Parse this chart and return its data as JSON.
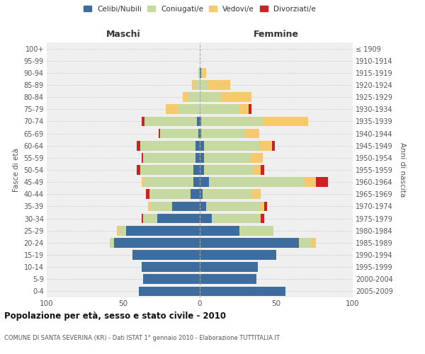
{
  "age_groups": [
    "0-4",
    "5-9",
    "10-14",
    "15-19",
    "20-24",
    "25-29",
    "30-34",
    "35-39",
    "40-44",
    "45-49",
    "50-54",
    "55-59",
    "60-64",
    "65-69",
    "70-74",
    "75-79",
    "80-84",
    "85-89",
    "90-94",
    "95-99",
    "100+"
  ],
  "birth_years": [
    "2005-2009",
    "2000-2004",
    "1995-1999",
    "1990-1994",
    "1985-1989",
    "1980-1984",
    "1975-1979",
    "1970-1974",
    "1965-1969",
    "1960-1964",
    "1955-1959",
    "1950-1954",
    "1945-1949",
    "1940-1944",
    "1935-1939",
    "1930-1934",
    "1925-1929",
    "1920-1924",
    "1915-1919",
    "1910-1914",
    "≤ 1909"
  ],
  "males": {
    "celibe": [
      40,
      37,
      38,
      44,
      56,
      48,
      28,
      18,
      6,
      4,
      4,
      3,
      3,
      1,
      2,
      0,
      0,
      0,
      0,
      0,
      0
    ],
    "coniugato": [
      0,
      0,
      0,
      0,
      3,
      4,
      9,
      14,
      27,
      32,
      35,
      34,
      36,
      25,
      34,
      14,
      8,
      3,
      1,
      0,
      0
    ],
    "vedovo": [
      0,
      0,
      0,
      0,
      0,
      2,
      0,
      2,
      0,
      2,
      0,
      0,
      0,
      0,
      0,
      8,
      3,
      2,
      0,
      0,
      0
    ],
    "divorziato": [
      0,
      0,
      0,
      0,
      0,
      0,
      1,
      0,
      2,
      0,
      2,
      1,
      2,
      1,
      2,
      0,
      0,
      0,
      0,
      0,
      0
    ]
  },
  "females": {
    "nubile": [
      56,
      37,
      38,
      50,
      65,
      26,
      8,
      4,
      2,
      6,
      3,
      3,
      3,
      1,
      1,
      0,
      0,
      0,
      1,
      0,
      0
    ],
    "coniugata": [
      0,
      0,
      0,
      0,
      8,
      22,
      32,
      36,
      32,
      62,
      32,
      30,
      36,
      28,
      40,
      26,
      14,
      5,
      1,
      0,
      0
    ],
    "vedova": [
      0,
      0,
      0,
      0,
      3,
      0,
      0,
      2,
      6,
      8,
      5,
      8,
      8,
      10,
      30,
      6,
      20,
      15,
      2,
      0,
      0
    ],
    "divorziata": [
      0,
      0,
      0,
      0,
      0,
      0,
      2,
      2,
      0,
      8,
      2,
      0,
      2,
      0,
      0,
      2,
      0,
      0,
      0,
      0,
      0
    ]
  },
  "color_celibe": "#3d6d9e",
  "color_coniugato": "#c5d9a0",
  "color_vedovo": "#f5c96e",
  "color_divorziato": "#cc2222",
  "title": "Popolazione per età, sesso e stato civile - 2010",
  "subtitle": "COMUNE DI SANTA SEVERINA (KR) - Dati ISTAT 1° gennaio 2010 - Elaborazione TUTTITALIA.IT",
  "xlabel_left": "Maschi",
  "xlabel_right": "Femmine",
  "ylabel_left": "Fasce di età",
  "ylabel_right": "Anni di nascita",
  "xlim": 100,
  "bg_color": "#efefef",
  "bar_height": 0.8
}
